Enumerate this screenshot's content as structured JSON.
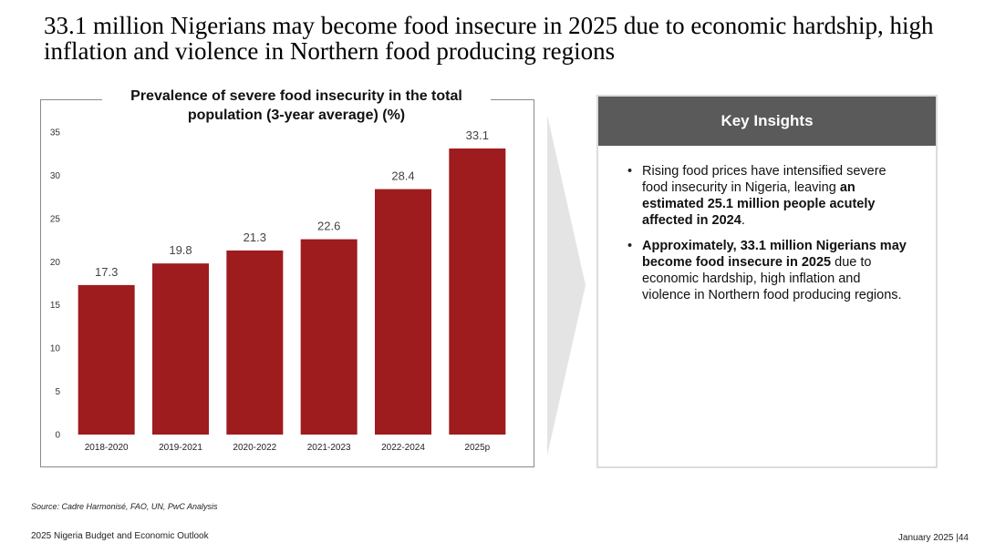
{
  "headline": "33.1 million Nigerians may become food insecure in 2025 due to economic hardship, high inflation and violence in Northern food producing regions",
  "chart_data": {
    "type": "bar",
    "title": "Prevalence of severe food insecurity in the total population (3-year average) (%)",
    "categories": [
      "2018-2020",
      "2019-2021",
      "2020-2022",
      "2021-2023",
      "2022-2024",
      "2025p"
    ],
    "values": [
      17.3,
      19.8,
      21.3,
      22.6,
      28.4,
      33.1
    ],
    "value_labels": [
      "17.3",
      "19.8",
      "21.3",
      "22.6",
      "28.4",
      "33.1"
    ],
    "yticks": [
      "0",
      "5",
      "10",
      "15",
      "20",
      "25",
      "30",
      "35"
    ],
    "ylim": [
      0,
      35
    ],
    "xlabel": "",
    "ylabel": "",
    "bar_color": "#9e1b1e",
    "grid": false,
    "legend": "none"
  },
  "insights": {
    "header": "Key Insights",
    "header_color": "#5a5a5a",
    "bullets": [
      {
        "pre": "Rising food prices have intensified severe food insecurity in Nigeria, leaving ",
        "bold": "an estimated 25.1 million people acutely affected in 2024",
        "post": "."
      },
      {
        "pre": "",
        "bold": "Approximately, 33.1 million Nigerians may become food insecure in 2025",
        "post": " due to economic hardship, high inflation and violence in Northern food producing regions."
      }
    ]
  },
  "source": "Source: Cadre Harmonisé, FAO, UN, PwC Analysis",
  "footer": {
    "left": "2025 Nigeria Budget and Economic Outlook",
    "right": "January 2025 |44"
  }
}
